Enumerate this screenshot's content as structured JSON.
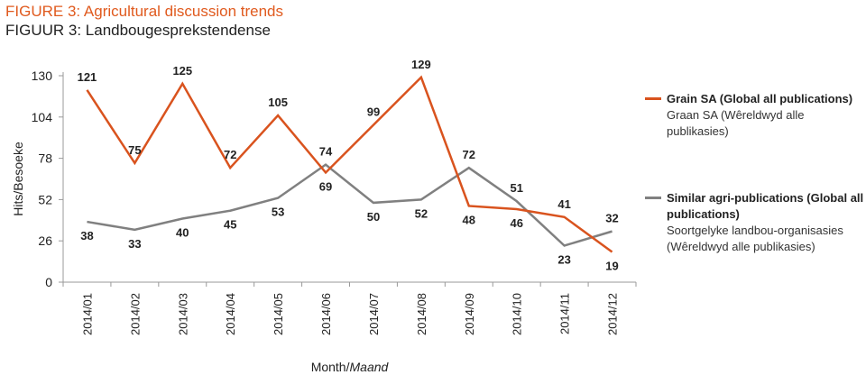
{
  "title": "FIGURE 3: Agricultural discussion trends",
  "subtitle": "FIGUUR 3: Landbougesprekstendense",
  "colors": {
    "title": "#e05a1e",
    "grain": "#d9531e",
    "similar": "#808080",
    "axis": "#999999"
  },
  "legend": [
    {
      "name": "Grain SA (Global all publications)",
      "sub": "Graan SA (Wêreldwyd alle publikasies)"
    },
    {
      "name": "Similar agri-publications (Global all publications)",
      "sub": "Soortgelyke landbou-organisasies (Wêreldwyd alle publikasies)"
    }
  ],
  "chart_data": {
    "type": "line",
    "ylabel": "Hits/Besoeke",
    "xlabel": "Month/Maand",
    "xlabel_parts": [
      "Month/",
      "Maand"
    ],
    "categories": [
      "2014/01",
      "2014/02",
      "2014/03",
      "2014/04",
      "2014/05",
      "2014/06",
      "2014/07",
      "2014/08",
      "2014/09",
      "2014/10",
      "2014/11",
      "2014/12"
    ],
    "yticks": [
      0,
      26,
      52,
      78,
      104,
      130
    ],
    "ylim": [
      0,
      130
    ],
    "grid": false,
    "legend_position": "right",
    "series": [
      {
        "name": "Grain SA (Global all publications)",
        "values": [
          121,
          75,
          125,
          72,
          105,
          69,
          99,
          129,
          48,
          46,
          41,
          19
        ]
      },
      {
        "name": "Similar agri-publications (Global all publications)",
        "values": [
          38,
          33,
          40,
          45,
          53,
          74,
          50,
          52,
          72,
          51,
          23,
          32
        ]
      }
    ]
  }
}
